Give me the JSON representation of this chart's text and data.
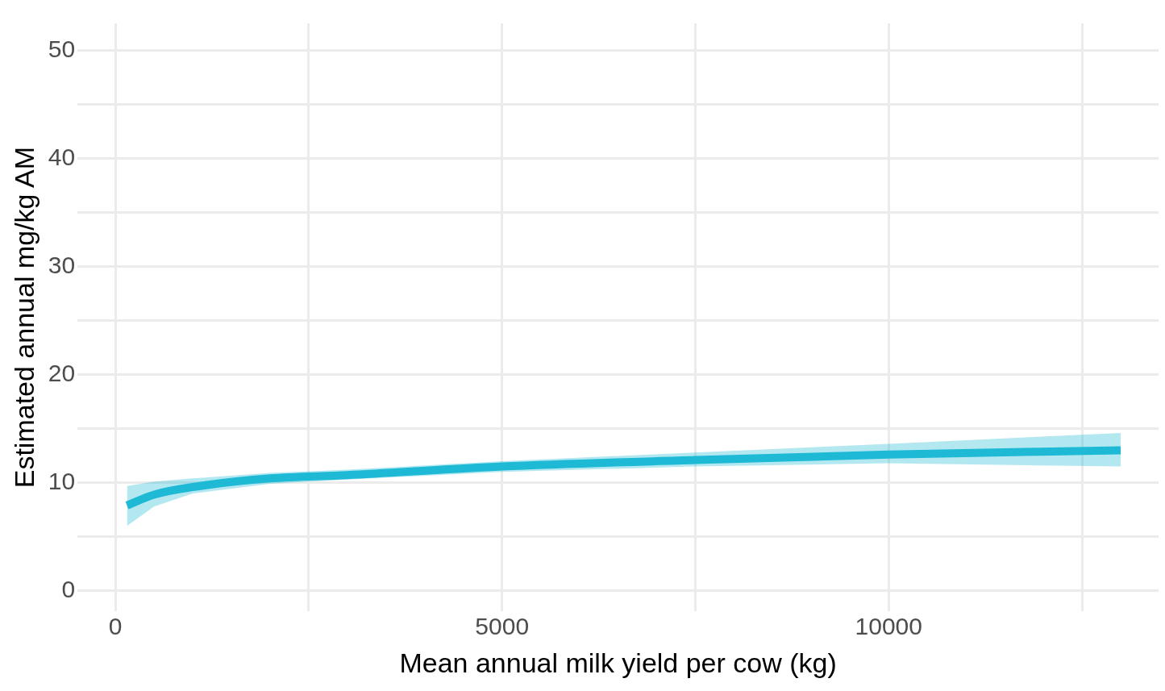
{
  "chart_data": {
    "type": "line",
    "xlabel": "Mean annual milk yield per cow (kg)",
    "ylabel": "Estimated annual mg/kg AM",
    "xlim": [
      -490,
      13490
    ],
    "ylim": [
      -1.9,
      52.5
    ],
    "xticks": [
      0,
      {
        "value": 2500,
        "label": null
      },
      5000,
      {
        "value": 7500,
        "label": null
      },
      10000,
      {
        "value": 12500,
        "label": null
      }
    ],
    "yticks": [
      0,
      {
        "value": 5,
        "label": null
      },
      10,
      {
        "value": 15,
        "label": null
      },
      20,
      {
        "value": 25,
        "label": null
      },
      30,
      {
        "value": 35,
        "label": null
      },
      40,
      {
        "value": 45,
        "label": null
      },
      50
    ],
    "grid": true,
    "legend": false,
    "marker": "none",
    "line_style": "solid",
    "series": [
      {
        "color": "#1fbad6",
        "x": [
          150,
          500,
          1000,
          2000,
          3000,
          5000,
          7500,
          10000,
          13000
        ],
        "values": [
          7.9,
          8.9,
          9.6,
          10.4,
          10.7,
          11.5,
          12.1,
          12.6,
          13.0
        ],
        "lower": [
          6.0,
          7.8,
          9.0,
          9.9,
          10.3,
          11.0,
          11.5,
          11.8,
          11.5
        ],
        "upper": [
          9.7,
          10.1,
          10.4,
          10.9,
          11.2,
          12.0,
          12.8,
          13.6,
          14.6
        ]
      }
    ]
  }
}
